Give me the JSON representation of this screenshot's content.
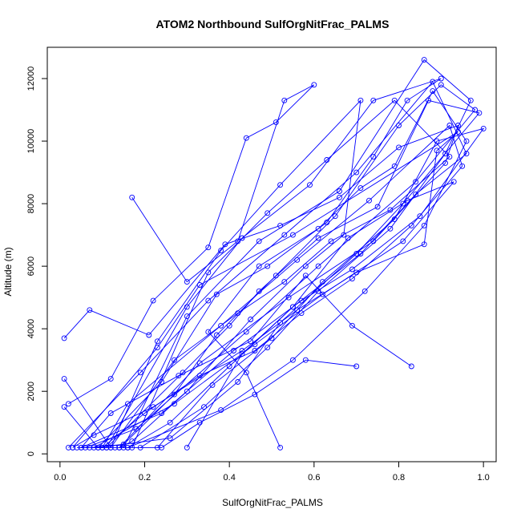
{
  "chart_data": {
    "type": "scatter",
    "title": "ATOM2 Northbound SulfOrgNitFrac_PALMS",
    "xlabel": "SulfOrgNitFrac_PALMS",
    "ylabel": "Altitude (m)",
    "xlim": [
      -0.03,
      1.03
    ],
    "ylim": [
      -250,
      13000
    ],
    "x_ticks": [
      0.0,
      0.2,
      0.4,
      0.6,
      0.8,
      1.0
    ],
    "x_tick_labels": [
      "0.0",
      "0.2",
      "0.4",
      "0.6",
      "0.8",
      "1.0"
    ],
    "y_ticks": [
      0,
      2000,
      4000,
      6000,
      8000,
      10000,
      12000
    ],
    "y_tick_labels": [
      "0",
      "2000",
      "4000",
      "6000",
      "8000",
      "10000",
      "12000"
    ],
    "grid": false,
    "color": "#0000ff",
    "marker": "open-circle",
    "connected": true,
    "series": [
      {
        "x": [
          0.03,
          0.08,
          0.22,
          0.43,
          0.56,
          0.7,
          0.86,
          0.89,
          0.94,
          0.55,
          0.33,
          0.23,
          0.03
        ],
        "y": [
          200,
          600,
          1500,
          3300,
          4600,
          5800,
          6700,
          9700,
          10300,
          7000,
          5400,
          3400,
          200
        ]
      },
      {
        "x": [
          0.04,
          0.11,
          0.29,
          0.4,
          0.47,
          0.61,
          0.75,
          0.87,
          0.99,
          0.81,
          0.7,
          0.52,
          0.42,
          0.26,
          0.09
        ],
        "y": [
          200,
          200,
          2600,
          4100,
          5200,
          6900,
          7900,
          11300,
          10900,
          8000,
          6400,
          4200,
          2300,
          500,
          200
        ]
      },
      {
        "x": [
          0.07,
          0.15,
          0.27,
          0.37,
          0.51,
          0.65,
          0.8,
          0.9,
          0.98,
          0.84,
          0.61,
          0.44,
          0.18,
          0.06
        ],
        "y": [
          200,
          300,
          1900,
          3800,
          5700,
          7600,
          10500,
          11800,
          11000,
          8700,
          6000,
          3900,
          800,
          200
        ]
      },
      {
        "x": [
          0.1,
          0.2,
          0.33,
          0.46,
          0.57,
          0.69,
          0.83,
          0.95,
          0.92,
          0.73,
          0.56,
          0.38,
          0.16,
          0.1
        ],
        "y": [
          200,
          1300,
          2500,
          3300,
          4500,
          5600,
          7300,
          9200,
          10500,
          8100,
          6200,
          4100,
          1600,
          200
        ]
      },
      {
        "x": [
          0.14,
          0.17,
          0.3,
          0.45,
          0.58,
          0.67,
          0.71,
          0.52,
          0.38,
          0.23,
          0.12
        ],
        "y": [
          200,
          400,
          2000,
          4300,
          6000,
          7000,
          11300,
          8600,
          6500,
          3600,
          200
        ]
      },
      {
        "x": [
          0.16,
          0.26,
          0.4,
          0.55,
          0.71,
          0.84,
          0.96,
          0.88,
          0.7,
          0.53,
          0.35,
          0.19,
          0.02
        ],
        "y": [
          200,
          1000,
          2800,
          4700,
          6400,
          8300,
          9600,
          11900,
          9000,
          7000,
          4900,
          2600,
          200
        ]
      },
      {
        "x": [
          0.19,
          0.34,
          0.49,
          0.61,
          0.78,
          0.91,
          0.97,
          0.86,
          0.66,
          0.47,
          0.3,
          0.15
        ],
        "y": [
          200,
          1500,
          3400,
          5200,
          7200,
          9600,
          11300,
          12600,
          8400,
          6800,
          4400,
          200
        ]
      },
      {
        "x": [
          0.23,
          0.36,
          0.5,
          0.62,
          0.79,
          0.89,
          1.0,
          0.85,
          0.69,
          0.57,
          0.41,
          0.24,
          0.05
        ],
        "y": [
          200,
          2200,
          3700,
          5500,
          7500,
          10000,
          10400,
          7600,
          5900,
          4900,
          3300,
          1300,
          200
        ]
      },
      {
        "x": [
          0.3,
          0.43,
          0.55,
          0.68,
          0.82,
          0.93,
          0.81,
          0.62,
          0.46,
          0.27,
          0.08
        ],
        "y": [
          200,
          3200,
          4700,
          6900,
          8100,
          8700,
          6800,
          5100,
          3500,
          1600,
          200
        ]
      },
      {
        "x": [
          0.01,
          0.09,
          0.24,
          0.37,
          0.49,
          0.63,
          0.74,
          0.82,
          0.9,
          0.74,
          0.59,
          0.43,
          0.3,
          0.11
        ],
        "y": [
          1500,
          200,
          2300,
          5100,
          6000,
          7400,
          9500,
          11300,
          12000,
          11300,
          8600,
          6900,
          4700,
          200
        ]
      },
      {
        "x": [
          0.01,
          0.12,
          0.27,
          0.42,
          0.53,
          0.64,
          0.78,
          0.92,
          0.79,
          0.63,
          0.49,
          0.35,
          0.17
        ],
        "y": [
          2400,
          200,
          3000,
          4500,
          5500,
          6800,
          7800,
          9500,
          11300,
          9400,
          7700,
          5800,
          200
        ]
      },
      {
        "x": [
          0.01,
          0.07,
          0.21,
          0.39,
          0.52,
          0.66,
          0.8,
          0.94,
          0.91,
          0.74,
          0.54,
          0.33,
          0.14
        ],
        "y": [
          3700,
          4600,
          3800,
          6700,
          7300,
          8200,
          9800,
          10500,
          9300,
          6800,
          5000,
          2900,
          200
        ]
      },
      {
        "x": [
          0.17,
          0.3,
          0.42,
          0.53,
          0.6,
          0.51,
          0.44,
          0.35,
          0.22,
          0.12,
          0.02
        ],
        "y": [
          8200,
          5500,
          6800,
          11300,
          11800,
          10600,
          10100,
          6600,
          4900,
          2400,
          1600
        ]
      },
      {
        "x": [
          0.52,
          0.44,
          0.35,
          0.47,
          0.61,
          0.71,
          0.79,
          0.88,
          0.96,
          0.86,
          0.72,
          0.55,
          0.38,
          0.16
        ],
        "y": [
          200,
          2600,
          3900,
          6000,
          7200,
          8500,
          9200,
          11600,
          10000,
          7300,
          5200,
          3000,
          1400,
          200
        ]
      },
      {
        "x": [
          0.7,
          0.58,
          0.46,
          0.33,
          0.24,
          0.13,
          0.05,
          0.12,
          0.28,
          0.45,
          0.58,
          0.69,
          0.83
        ],
        "y": [
          2800,
          3000,
          1900,
          1000,
          200,
          200,
          200,
          1300,
          2500,
          3600,
          5700,
          4100,
          2800
        ]
      }
    ]
  }
}
